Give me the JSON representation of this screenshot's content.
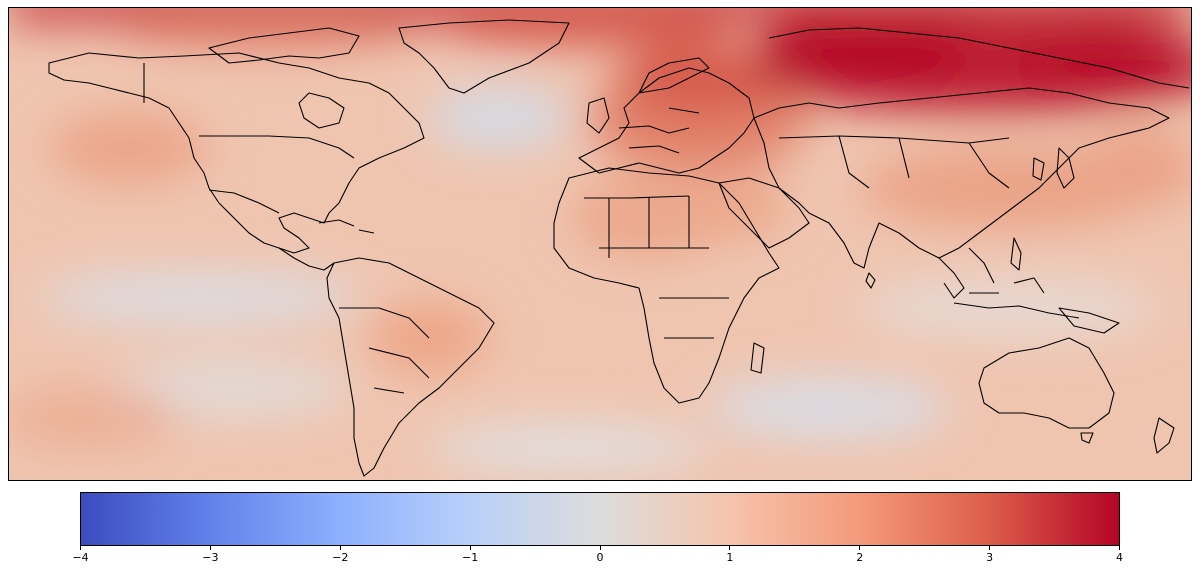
{
  "colorbar": {
    "ticks": [
      {
        "value": -4,
        "label": "−4"
      },
      {
        "value": -3,
        "label": "−3"
      },
      {
        "value": -2,
        "label": "−2"
      },
      {
        "value": -1,
        "label": "−1"
      },
      {
        "value": 0,
        "label": "0"
      },
      {
        "value": 1,
        "label": "1"
      },
      {
        "value": 2,
        "label": "2"
      },
      {
        "value": 3,
        "label": "3"
      },
      {
        "value": 4,
        "label": "4"
      }
    ],
    "range": [
      -4,
      4
    ],
    "colormap": "coolwarm",
    "colors": {
      "low": "#3b4cc0",
      "mid": "#dddcdc",
      "high": "#b40426"
    }
  },
  "map": {
    "projection": "plate-carree",
    "overlay": "coastlines and country borders",
    "background_anomaly_level": 0.8,
    "hotspots": [
      {
        "region": "northern Russia / Siberia",
        "level": 4
      },
      {
        "region": "Arctic Ocean north edge",
        "level": 3.5
      },
      {
        "region": "Scandinavia / eastern Europe",
        "level": 2.3
      },
      {
        "region": "central Asia / Mongolia",
        "level": 2
      },
      {
        "region": "central South America",
        "level": 1.4
      },
      {
        "region": "Arabian Peninsula / Sahara",
        "level": 1.3
      },
      {
        "region": "north-east Pacific",
        "level": 1.2
      }
    ],
    "coolspots": [
      {
        "region": "North Atlantic south of Greenland",
        "level": -0.2
      },
      {
        "region": "equatorial eastern Pacific",
        "level": 0
      },
      {
        "region": "Southern Ocean south of Africa",
        "level": 0
      }
    ]
  }
}
